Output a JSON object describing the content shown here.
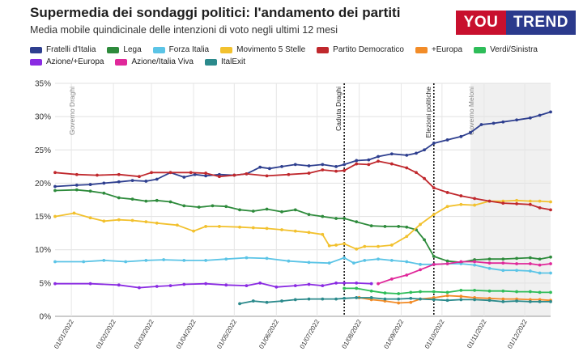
{
  "header": {
    "title": "Supermedia dei sondaggi politici: l'andamento dei partiti",
    "subtitle": "Media mobile quindicinale delle intenzioni di voto negli ultimi 12 mesi",
    "logo_left": "YOU",
    "logo_right": "TREND",
    "logo_colors": {
      "left": "#c8102e",
      "right": "#2b3a8c"
    }
  },
  "chart_data": {
    "type": "line",
    "title": "Supermedia dei sondaggi politici: l'andamento dei partiti",
    "subtitle": "Media mobile quindicinale delle intenzioni di voto negli ultimi 12 mesi",
    "xlabel": "",
    "ylabel": "",
    "ylim": [
      0,
      35
    ],
    "y_ticks": [
      "0%",
      "5%",
      "10%",
      "15%",
      "20%",
      "25%",
      "30%",
      "35%"
    ],
    "x_range": [
      "2021-12-20",
      "2022-12-20"
    ],
    "x_tick_dates": [
      "2022-01-01",
      "2022-02-01",
      "2022-03-01",
      "2022-04-01",
      "2022-05-01",
      "2022-06-01",
      "2022-07-01",
      "2022-08-01",
      "2022-09-01",
      "2022-10-01",
      "2022-11-01",
      "2022-12-01"
    ],
    "x_tick_labels": [
      "01/01/2022",
      "01/02/2022",
      "01/03/2022",
      "01/04/2022",
      "01/05/2022",
      "01/06/2022",
      "01/07/2022",
      "01/08/2022",
      "01/09/2022",
      "01/10/2022",
      "01/11/2022",
      "01/12/2022"
    ],
    "grid": true,
    "legend_position": "top",
    "annotations": [
      {
        "date": "2022-01-01",
        "label": "Governo Draghi",
        "style": "none"
      },
      {
        "date": "2022-07-21",
        "label": "Caduta Draghi",
        "style": "dotted"
      },
      {
        "date": "2022-09-25",
        "label": "Elezioni politiche",
        "style": "dotted"
      },
      {
        "date": "2022-10-22",
        "label": "Governo Meloni",
        "style": "shade"
      }
    ],
    "series": [
      {
        "name": "Fratelli d'Italia",
        "color": "#2e3f8f",
        "x": [
          "2021-12-20",
          "2022-01-05",
          "2022-01-15",
          "2022-01-25",
          "2022-02-05",
          "2022-02-15",
          "2022-02-25",
          "2022-03-05",
          "2022-03-15",
          "2022-03-25",
          "2022-04-02",
          "2022-04-10",
          "2022-04-20",
          "2022-05-01",
          "2022-05-10",
          "2022-05-20",
          "2022-05-27",
          "2022-06-05",
          "2022-06-15",
          "2022-06-25",
          "2022-07-05",
          "2022-07-15",
          "2022-07-21",
          "2022-07-30",
          "2022-08-08",
          "2022-08-15",
          "2022-08-25",
          "2022-09-05",
          "2022-09-12",
          "2022-09-18",
          "2022-09-25",
          "2022-10-05",
          "2022-10-15",
          "2022-10-22",
          "2022-10-30",
          "2022-11-08",
          "2022-11-15",
          "2022-11-25",
          "2022-12-05",
          "2022-12-12",
          "2022-12-20"
        ],
        "values": [
          19.5,
          19.7,
          19.8,
          20.0,
          20.2,
          20.4,
          20.3,
          20.6,
          21.6,
          20.9,
          21.3,
          21.1,
          21.3,
          21.2,
          21.4,
          22.4,
          22.2,
          22.5,
          22.8,
          22.6,
          22.8,
          22.5,
          22.8,
          23.4,
          23.5,
          24.0,
          24.4,
          24.2,
          24.5,
          25.0,
          26.0,
          26.5,
          27.0,
          27.6,
          28.8,
          29.0,
          29.2,
          29.5,
          29.8,
          30.2,
          30.7
        ]
      },
      {
        "name": "Lega",
        "color": "#2e8b3c",
        "x": [
          "2021-12-20",
          "2022-01-05",
          "2022-01-15",
          "2022-01-25",
          "2022-02-05",
          "2022-02-15",
          "2022-02-25",
          "2022-03-05",
          "2022-03-15",
          "2022-03-25",
          "2022-04-05",
          "2022-04-15",
          "2022-04-25",
          "2022-05-05",
          "2022-05-15",
          "2022-05-25",
          "2022-06-05",
          "2022-06-15",
          "2022-06-25",
          "2022-07-05",
          "2022-07-15",
          "2022-07-21",
          "2022-07-30",
          "2022-08-10",
          "2022-08-20",
          "2022-08-30",
          "2022-09-05",
          "2022-09-12",
          "2022-09-18",
          "2022-09-25",
          "2022-10-05",
          "2022-10-15",
          "2022-10-25",
          "2022-11-05",
          "2022-11-15",
          "2022-11-25",
          "2022-12-05",
          "2022-12-12",
          "2022-12-20"
        ],
        "values": [
          18.9,
          19.0,
          18.8,
          18.5,
          17.8,
          17.6,
          17.3,
          17.4,
          17.2,
          16.6,
          16.4,
          16.6,
          16.5,
          16.0,
          15.8,
          16.1,
          15.7,
          16.0,
          15.3,
          15.0,
          14.7,
          14.7,
          14.2,
          13.6,
          13.5,
          13.5,
          13.4,
          13.0,
          11.5,
          9.0,
          8.3,
          8.1,
          8.5,
          8.6,
          8.6,
          8.7,
          8.8,
          8.6,
          8.9
        ]
      },
      {
        "name": "Forza Italia",
        "color": "#5bc4e6",
        "x": [
          "2021-12-20",
          "2022-01-10",
          "2022-01-25",
          "2022-02-10",
          "2022-02-25",
          "2022-03-10",
          "2022-03-25",
          "2022-04-10",
          "2022-04-25",
          "2022-05-10",
          "2022-05-25",
          "2022-06-10",
          "2022-06-25",
          "2022-07-10",
          "2022-07-21",
          "2022-07-28",
          "2022-08-05",
          "2022-08-15",
          "2022-08-25",
          "2022-09-05",
          "2022-09-15",
          "2022-09-25",
          "2022-10-05",
          "2022-10-15",
          "2022-10-25",
          "2022-11-05",
          "2022-11-15",
          "2022-11-25",
          "2022-12-05",
          "2022-12-12",
          "2022-12-20"
        ],
        "values": [
          8.2,
          8.2,
          8.4,
          8.2,
          8.4,
          8.5,
          8.4,
          8.4,
          8.6,
          8.8,
          8.7,
          8.3,
          8.1,
          8.0,
          8.8,
          8.0,
          8.4,
          8.6,
          8.4,
          8.2,
          7.8,
          7.8,
          7.9,
          7.9,
          7.7,
          7.2,
          6.9,
          6.9,
          6.8,
          6.5,
          6.5
        ]
      },
      {
        "name": "Movimento 5 Stelle",
        "color": "#f2c12e",
        "x": [
          "2021-12-20",
          "2022-01-03",
          "2022-01-15",
          "2022-01-25",
          "2022-02-05",
          "2022-02-15",
          "2022-02-25",
          "2022-03-05",
          "2022-03-20",
          "2022-04-01",
          "2022-04-10",
          "2022-04-20",
          "2022-05-05",
          "2022-05-15",
          "2022-05-25",
          "2022-06-05",
          "2022-06-15",
          "2022-06-25",
          "2022-07-05",
          "2022-07-10",
          "2022-07-15",
          "2022-07-21",
          "2022-07-30",
          "2022-08-05",
          "2022-08-15",
          "2022-08-25",
          "2022-09-05",
          "2022-09-15",
          "2022-09-25",
          "2022-10-05",
          "2022-10-15",
          "2022-10-25",
          "2022-11-05",
          "2022-11-15",
          "2022-11-25",
          "2022-12-05",
          "2022-12-12",
          "2022-12-20"
        ],
        "values": [
          15.0,
          15.5,
          14.8,
          14.3,
          14.5,
          14.4,
          14.2,
          14.0,
          13.7,
          12.8,
          13.5,
          13.5,
          13.4,
          13.3,
          13.2,
          13.0,
          12.8,
          12.6,
          12.3,
          10.6,
          10.7,
          10.9,
          10.1,
          10.5,
          10.5,
          10.7,
          12.0,
          13.8,
          15.3,
          16.5,
          16.8,
          16.7,
          17.3,
          17.3,
          17.4,
          17.3,
          17.3,
          17.2
        ]
      },
      {
        "name": "Partito Democratico",
        "color": "#c0282d",
        "x": [
          "2021-12-20",
          "2022-01-05",
          "2022-01-20",
          "2022-02-05",
          "2022-02-20",
          "2022-03-01",
          "2022-03-15",
          "2022-03-30",
          "2022-04-10",
          "2022-04-20",
          "2022-05-01",
          "2022-05-10",
          "2022-05-25",
          "2022-06-10",
          "2022-06-25",
          "2022-07-05",
          "2022-07-15",
          "2022-07-21",
          "2022-07-30",
          "2022-08-08",
          "2022-08-15",
          "2022-08-25",
          "2022-09-05",
          "2022-09-12",
          "2022-09-18",
          "2022-09-25",
          "2022-10-05",
          "2022-10-15",
          "2022-10-25",
          "2022-11-05",
          "2022-11-15",
          "2022-11-25",
          "2022-12-05",
          "2022-12-12",
          "2022-12-20"
        ],
        "values": [
          21.6,
          21.3,
          21.2,
          21.3,
          21.0,
          21.6,
          21.6,
          21.6,
          21.5,
          21.0,
          21.2,
          21.4,
          21.1,
          21.3,
          21.5,
          22.0,
          21.8,
          21.9,
          22.9,
          22.8,
          23.3,
          22.9,
          22.3,
          21.6,
          20.7,
          19.3,
          18.6,
          18.1,
          17.7,
          17.3,
          17.0,
          16.9,
          16.8,
          16.3,
          16.0
        ]
      },
      {
        "name": "+Europa",
        "color": "#f28c28",
        "x": [
          "2022-08-01",
          "2022-08-10",
          "2022-08-20",
          "2022-08-30",
          "2022-09-08",
          "2022-09-15",
          "2022-09-25",
          "2022-10-05",
          "2022-10-15",
          "2022-10-25",
          "2022-11-05",
          "2022-11-15",
          "2022-11-25",
          "2022-12-05",
          "2022-12-12",
          "2022-12-20"
        ],
        "values": [
          2.8,
          2.5,
          2.3,
          2.0,
          2.1,
          2.6,
          2.8,
          3.1,
          3.0,
          2.8,
          2.7,
          2.6,
          2.6,
          2.5,
          2.5,
          2.4
        ]
      },
      {
        "name": "Verdi/Sinistra",
        "color": "#2ebd59",
        "x": [
          "2022-07-21",
          "2022-07-30",
          "2022-08-10",
          "2022-08-20",
          "2022-08-30",
          "2022-09-08",
          "2022-09-15",
          "2022-09-25",
          "2022-10-05",
          "2022-10-15",
          "2022-10-25",
          "2022-11-05",
          "2022-11-15",
          "2022-11-25",
          "2022-12-05",
          "2022-12-12",
          "2022-12-20"
        ],
        "values": [
          4.2,
          4.2,
          3.8,
          3.5,
          3.4,
          3.6,
          3.7,
          3.7,
          3.6,
          3.9,
          3.9,
          3.8,
          3.8,
          3.7,
          3.7,
          3.6,
          3.6
        ]
      },
      {
        "name": "Azione/+Europa",
        "color": "#8a2be2",
        "x": [
          "2021-12-20",
          "2022-01-15",
          "2022-02-05",
          "2022-02-20",
          "2022-03-05",
          "2022-03-15",
          "2022-03-25",
          "2022-04-10",
          "2022-04-25",
          "2022-05-10",
          "2022-05-20",
          "2022-06-01",
          "2022-06-15",
          "2022-06-25",
          "2022-07-05",
          "2022-07-15",
          "2022-07-21",
          "2022-07-30",
          "2022-08-10"
        ],
        "values": [
          4.9,
          4.9,
          4.7,
          4.3,
          4.5,
          4.6,
          4.8,
          4.9,
          4.7,
          4.6,
          5.0,
          4.4,
          4.6,
          4.8,
          4.6,
          5.0,
          5.0,
          5.0,
          4.9
        ]
      },
      {
        "name": "Azione/Italia Viva",
        "color": "#e0289a",
        "x": [
          "2022-08-15",
          "2022-08-25",
          "2022-09-05",
          "2022-09-15",
          "2022-09-25",
          "2022-10-05",
          "2022-10-15",
          "2022-10-25",
          "2022-11-05",
          "2022-11-15",
          "2022-11-25",
          "2022-12-05",
          "2022-12-12",
          "2022-12-20"
        ],
        "values": [
          4.9,
          5.6,
          6.2,
          7.0,
          7.8,
          7.9,
          8.2,
          8.2,
          8.0,
          8.0,
          7.9,
          7.9,
          7.7,
          7.9
        ]
      },
      {
        "name": "ItalExit",
        "color": "#2b8a8c",
        "x": [
          "2022-05-05",
          "2022-05-15",
          "2022-05-25",
          "2022-06-05",
          "2022-06-15",
          "2022-06-25",
          "2022-07-05",
          "2022-07-15",
          "2022-07-21",
          "2022-07-30",
          "2022-08-10",
          "2022-08-20",
          "2022-08-30",
          "2022-09-08",
          "2022-09-15",
          "2022-09-25",
          "2022-10-05",
          "2022-10-15",
          "2022-10-25",
          "2022-11-05",
          "2022-11-15",
          "2022-11-25",
          "2022-12-05",
          "2022-12-12",
          "2022-12-20"
        ],
        "values": [
          1.9,
          2.3,
          2.1,
          2.3,
          2.5,
          2.6,
          2.6,
          2.6,
          2.7,
          2.8,
          2.8,
          2.6,
          2.6,
          2.7,
          2.6,
          2.5,
          2.4,
          2.5,
          2.5,
          2.4,
          2.2,
          2.3,
          2.2,
          2.2,
          2.2
        ]
      }
    ]
  }
}
